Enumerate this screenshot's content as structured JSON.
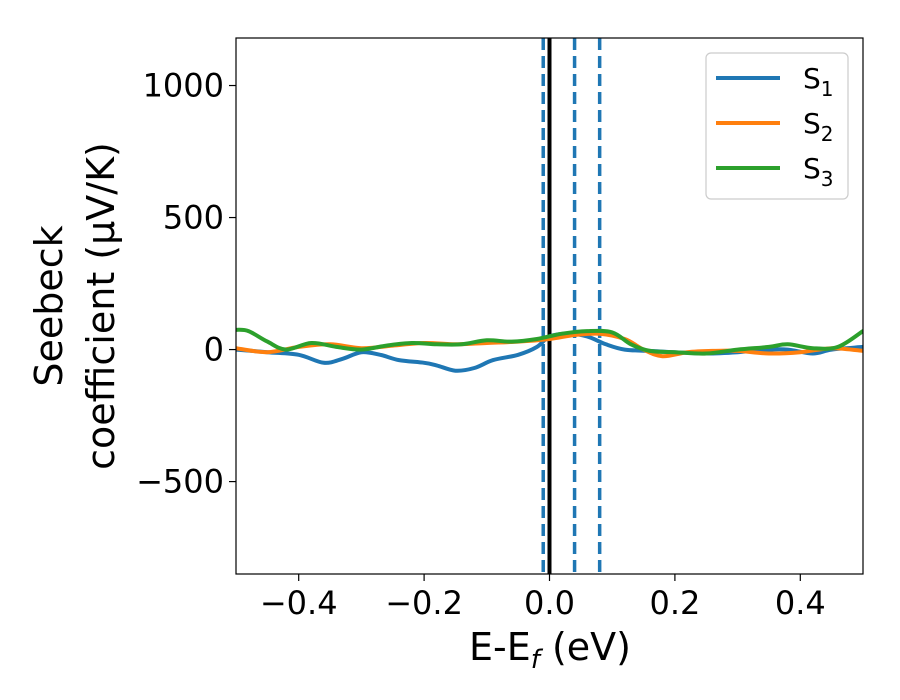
{
  "chart_data": {
    "type": "line",
    "xlabel": "E-E",
    "xlabel_sub": "f",
    "xlabel_unit": " (eV)",
    "ylabel_line1": "Seebeck",
    "ylabel_line2": "coefficient  (μV/K)",
    "xlim": [
      -0.5,
      0.5
    ],
    "ylim": [
      -850,
      1180
    ],
    "xticks": [
      -0.4,
      -0.2,
      0.0,
      0.2,
      0.4
    ],
    "xtick_labels": [
      "−0.4",
      "−0.2",
      "0.0",
      "0.2",
      "0.4"
    ],
    "yticks": [
      1000,
      500,
      0,
      -500
    ],
    "ytick_labels": [
      "1000",
      "500",
      "0",
      "−500"
    ],
    "legend_position": "top-right",
    "grid": false,
    "vlines": [
      {
        "x": -0.01,
        "style": "dashed",
        "color": "#1f77b4"
      },
      {
        "x": 0.0,
        "style": "solid",
        "color": "#000000"
      },
      {
        "x": 0.04,
        "style": "dashed",
        "color": "#1f77b4"
      },
      {
        "x": 0.08,
        "style": "dashed",
        "color": "#1f77b4"
      }
    ],
    "series": [
      {
        "name": "S",
        "sub": "1",
        "color": "#1f77b4",
        "x": [
          -0.5,
          -0.45,
          -0.4,
          -0.36,
          -0.33,
          -0.3,
          -0.27,
          -0.24,
          -0.2,
          -0.18,
          -0.15,
          -0.12,
          -0.09,
          -0.05,
          -0.02,
          0.0,
          0.03,
          0.06,
          0.09,
          0.12,
          0.16,
          0.2,
          0.25,
          0.3,
          0.35,
          0.38,
          0.42,
          0.45,
          0.5
        ],
        "y": [
          0,
          -10,
          -20,
          -50,
          -35,
          -10,
          -20,
          -40,
          -50,
          -60,
          -80,
          -70,
          -40,
          -20,
          10,
          50,
          60,
          50,
          20,
          0,
          -5,
          -10,
          -15,
          -10,
          0,
          0,
          -15,
          0,
          10
        ]
      },
      {
        "name": "S",
        "sub": "2",
        "color": "#ff7f0e",
        "x": [
          -0.5,
          -0.45,
          -0.4,
          -0.35,
          -0.3,
          -0.25,
          -0.2,
          -0.15,
          -0.1,
          -0.05,
          0.0,
          0.04,
          0.08,
          0.12,
          0.15,
          0.18,
          0.22,
          0.26,
          0.3,
          0.35,
          0.4,
          0.45,
          0.5
        ],
        "y": [
          5,
          -10,
          10,
          20,
          5,
          15,
          25,
          20,
          25,
          30,
          40,
          55,
          60,
          40,
          0,
          -25,
          -10,
          -5,
          -5,
          -15,
          -10,
          5,
          -5
        ]
      },
      {
        "name": "S",
        "sub": "3",
        "color": "#2ca02c",
        "x": [
          -0.5,
          -0.48,
          -0.45,
          -0.42,
          -0.38,
          -0.34,
          -0.3,
          -0.26,
          -0.22,
          -0.18,
          -0.14,
          -0.1,
          -0.06,
          -0.02,
          0.02,
          0.06,
          0.1,
          0.13,
          0.16,
          0.2,
          0.25,
          0.3,
          0.35,
          0.38,
          0.42,
          0.46,
          0.5
        ],
        "y": [
          75,
          70,
          30,
          0,
          25,
          10,
          0,
          15,
          25,
          20,
          20,
          35,
          30,
          40,
          60,
          70,
          65,
          20,
          -5,
          -10,
          -15,
          0,
          10,
          20,
          5,
          10,
          70
        ]
      }
    ]
  }
}
